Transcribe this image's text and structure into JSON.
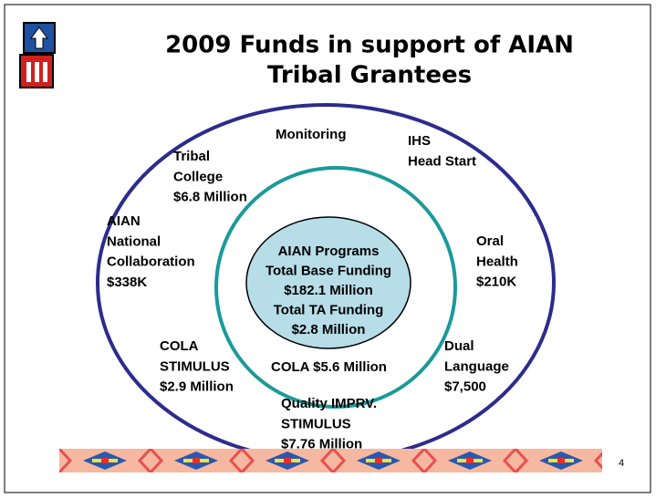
{
  "title": {
    "lines": [
      "2009 Funds in support of AIAN",
      "Tribal Grantees"
    ]
  },
  "center": {
    "lines": [
      "AIAN Programs",
      "Total Base Funding",
      "$182.1 Million",
      "Total TA Funding",
      "$2.8 Million"
    ]
  },
  "nodes": [
    {
      "lines": [
        "Monitoring"
      ]
    },
    {
      "lines": [
        "IHS",
        "Head Start"
      ]
    },
    {
      "lines": [
        "Tribal",
        "College",
        "$6.8 Million"
      ]
    },
    {
      "lines": [
        "AIAN",
        "National",
        "Collaboration",
        "$338K"
      ]
    },
    {
      "lines": [
        "Oral",
        "Health",
        "$210K"
      ]
    },
    {
      "lines": [
        "COLA",
        "STIMULUS",
        "$2.9 Million"
      ]
    },
    {
      "lines": [
        "COLA $5.6 Million"
      ]
    },
    {
      "lines": [
        "Dual",
        "Language",
        "$7,500"
      ]
    },
    {
      "lines": [
        "Quality IMPRV.",
        "STIMULUS",
        "$7.76 Million"
      ]
    }
  ],
  "page_number": "4"
}
